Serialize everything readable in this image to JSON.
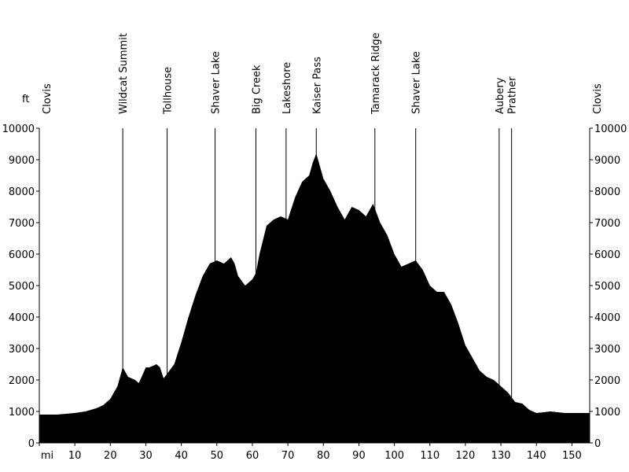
{
  "chart_data": {
    "type": "area",
    "title": "",
    "xlabel": "",
    "ylabel": "",
    "x_unit_label": "mi",
    "y_unit_label": "ft",
    "xlim": [
      0,
      155
    ],
    "ylim": [
      0,
      10000
    ],
    "x_ticks": [
      0,
      10,
      20,
      30,
      40,
      50,
      60,
      70,
      80,
      90,
      100,
      110,
      120,
      130,
      140,
      150
    ],
    "y_ticks": [
      0,
      1000,
      2000,
      3000,
      4000,
      5000,
      6000,
      7000,
      8000,
      9000,
      10000
    ],
    "x_tick_labels": [
      "mi",
      "10",
      "20",
      "30",
      "40",
      "50",
      "60",
      "70",
      "80",
      "90",
      "100",
      "110",
      "120",
      "130",
      "140",
      "150"
    ],
    "y_tick_labels": [
      "0",
      "1000",
      "2000",
      "3000",
      "4000",
      "5000",
      "6000",
      "7000",
      "8000",
      "9000",
      "10000"
    ],
    "grid": false,
    "fill_color": "#000000",
    "series": [
      {
        "x": [
          0,
          5,
          10,
          13,
          16,
          18,
          20,
          22,
          23.5,
          25,
          27,
          28,
          30,
          31,
          33,
          34,
          35,
          36,
          38,
          40,
          42,
          44,
          46,
          48,
          50,
          52,
          54,
          55,
          56,
          58,
          60,
          61,
          62,
          64,
          66,
          68,
          70,
          72,
          74,
          76,
          77,
          78,
          80,
          82,
          84,
          86,
          88,
          90,
          92,
          94,
          96,
          98,
          100,
          102,
          104,
          106,
          108,
          110,
          112,
          114,
          116,
          118,
          120,
          122,
          124,
          126,
          128,
          130,
          132,
          134,
          136,
          138,
          140,
          144,
          148,
          151,
          155
        ],
        "y": [
          900,
          900,
          950,
          1000,
          1100,
          1200,
          1400,
          1800,
          2400,
          2100,
          2000,
          1900,
          2400,
          2400,
          2500,
          2400,
          2050,
          2200,
          2500,
          3200,
          4000,
          4700,
          5300,
          5700,
          5800,
          5700,
          5900,
          5700,
          5300,
          5000,
          5200,
          5400,
          6000,
          6900,
          7100,
          7200,
          7100,
          7800,
          8300,
          8500,
          8900,
          9200,
          8400,
          8000,
          7500,
          7100,
          7500,
          7400,
          7200,
          7600,
          7000,
          6600,
          6000,
          5600,
          5700,
          5800,
          5500,
          5000,
          4800,
          4800,
          4400,
          3800,
          3100,
          2700,
          2300,
          2100,
          2000,
          1800,
          1600,
          1300,
          1250,
          1050,
          950,
          1000,
          950,
          950,
          950
        ]
      }
    ],
    "annotations": [
      {
        "label": "Clovis",
        "x": 0,
        "line": false
      },
      {
        "label": "Wildcat Summit",
        "x": 23.5,
        "line": true
      },
      {
        "label": "Tollhouse",
        "x": 36,
        "line": true
      },
      {
        "label": "Shaver Lake",
        "x": 49.5,
        "line": true
      },
      {
        "label": "Big Creek",
        "x": 61,
        "line": true
      },
      {
        "label": "Lakeshore",
        "x": 69.5,
        "line": true
      },
      {
        "label": "Kaiser Pass",
        "x": 78,
        "line": true
      },
      {
        "label": "Tamarack Ridge",
        "x": 94.5,
        "line": true
      },
      {
        "label": "Shaver Lake",
        "x": 106,
        "line": true
      },
      {
        "label": "Aubery\nPrather",
        "x": 129.5,
        "x2": 133,
        "line": true
      },
      {
        "label": "Clovis",
        "x": 155,
        "line": false
      }
    ]
  }
}
